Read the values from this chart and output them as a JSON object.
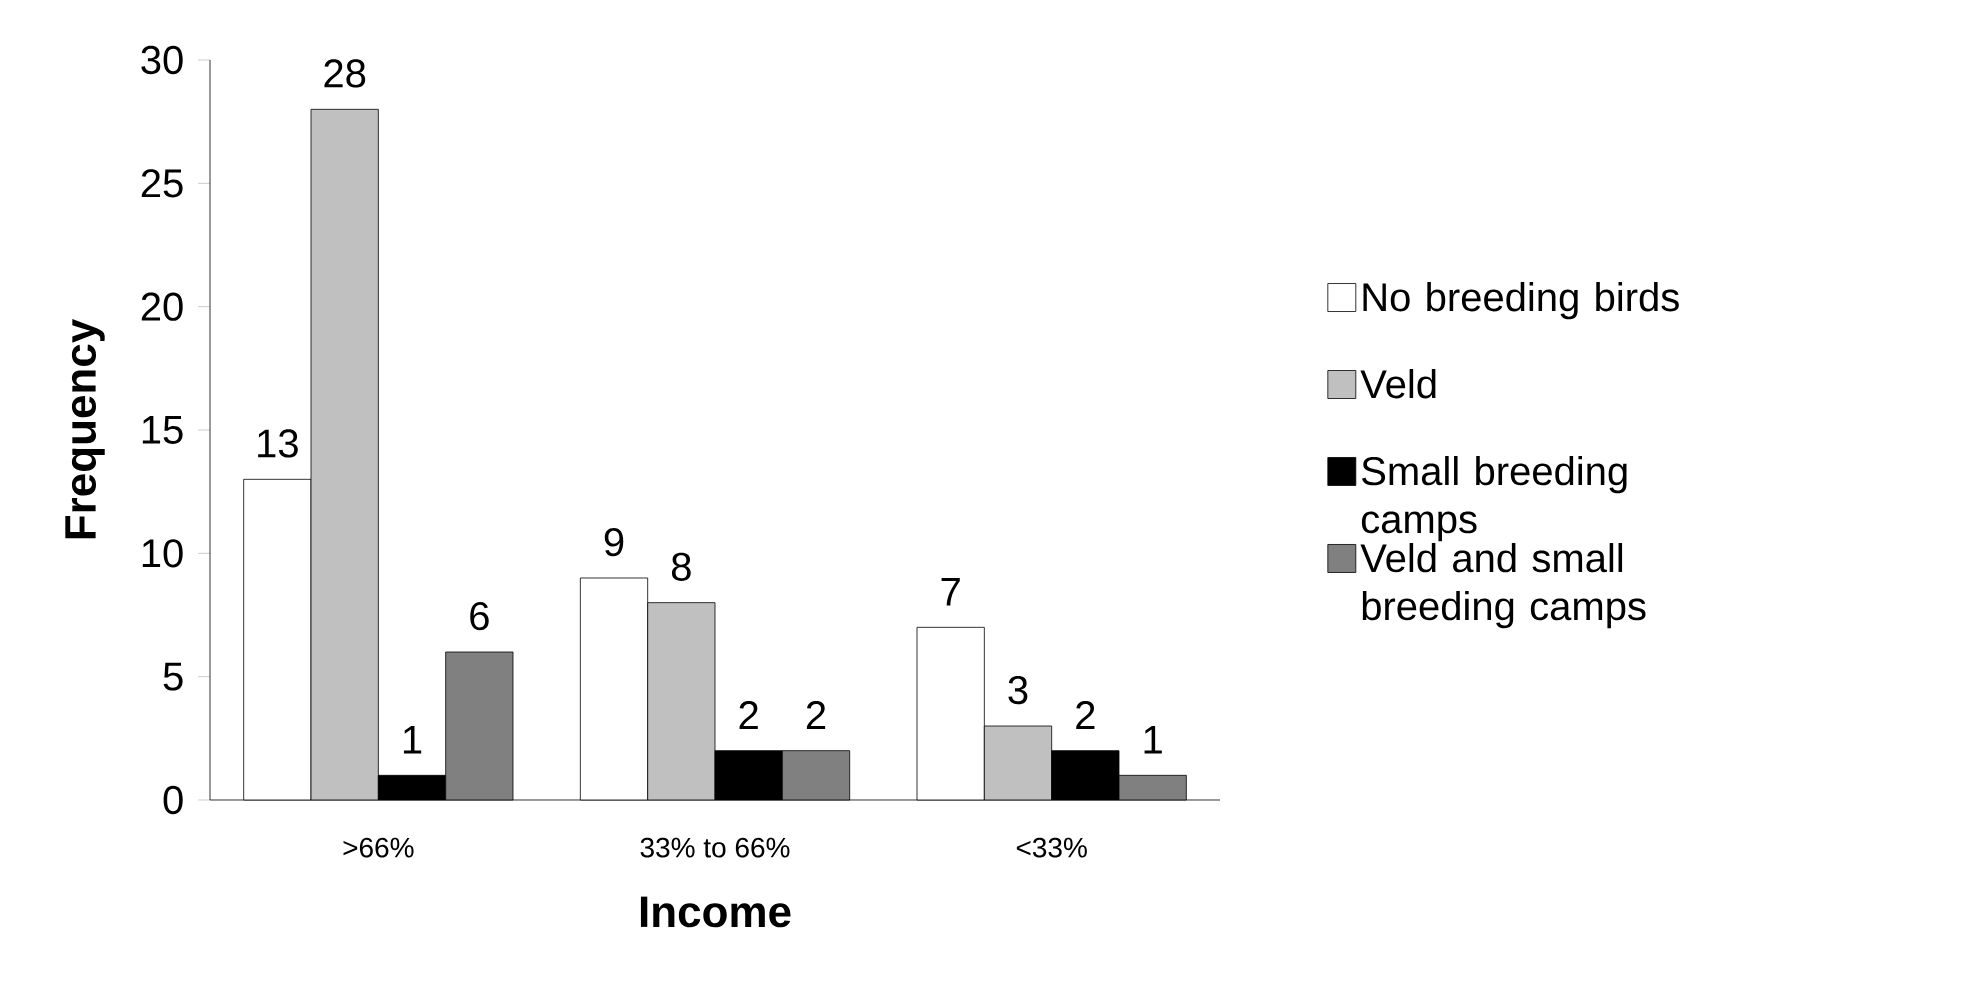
{
  "chart_data": {
    "type": "bar",
    "xlabel": "Income",
    "ylabel": "Frequency",
    "categories": [
      ">66%",
      "33% to 66%",
      "<33%"
    ],
    "series": [
      {
        "name": "No breeding birds",
        "color": "#ffffff",
        "values": [
          13,
          9,
          7
        ]
      },
      {
        "name": "Veld",
        "color": "#c0c0c0",
        "values": [
          28,
          8,
          3
        ]
      },
      {
        "name": "Small breeding camps",
        "color": "#000000",
        "values": [
          1,
          2,
          2
        ]
      },
      {
        "name": "Veld and small breeding camps",
        "color": "#808080",
        "values": [
          6,
          2,
          1
        ]
      }
    ],
    "ylim": [
      0,
      30
    ],
    "yticks": [
      0,
      5,
      10,
      15,
      20,
      25,
      30
    ],
    "data_labels": true,
    "legend": "right"
  }
}
